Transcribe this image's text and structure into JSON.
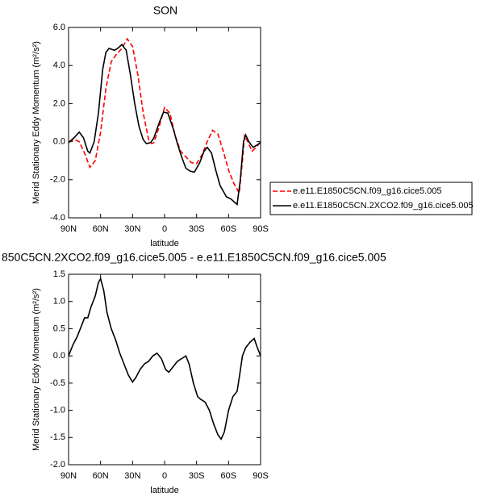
{
  "chart_data": [
    {
      "type": "line",
      "title": "SON",
      "xlabel": "latitude",
      "ylabel": "Merid Stationary Eddy Momentum (m²/s²)",
      "xlim": [
        90,
        -90
      ],
      "ylim": [
        -4.0,
        6.0
      ],
      "xticks": [
        {
          "value": 90,
          "label": "90N"
        },
        {
          "value": 60,
          "label": "60N"
        },
        {
          "value": 30,
          "label": "30N"
        },
        0,
        {
          "value": -30,
          "label": "30S"
        },
        {
          "value": -60,
          "label": "60S"
        },
        {
          "value": -90,
          "label": "90S"
        }
      ],
      "yticks": [
        {
          "value": -4,
          "label": "-4.0"
        },
        {
          "value": -2,
          "label": "-2.0"
        },
        {
          "value": 0,
          "label": "0.0"
        },
        {
          "value": 2,
          "label": "2.0"
        },
        {
          "value": 4,
          "label": "4.0"
        },
        {
          "value": 6,
          "label": "6.0"
        }
      ],
      "legend": "outside-right",
      "series": [
        {
          "name": "e.e11.E1850C5CN.f09_g16.cice5.005",
          "color": "#ff0000",
          "dash": "dashed",
          "x": [
            90,
            84,
            80,
            75,
            70,
            65,
            60,
            55,
            50,
            45,
            40,
            35,
            30,
            25,
            20,
            15,
            12,
            10,
            5,
            0,
            -5,
            -10,
            -15,
            -20,
            -25,
            -30,
            -35,
            -40,
            -45,
            -50,
            -55,
            -60,
            -65,
            -70,
            -73,
            -75,
            -78,
            -82,
            -86,
            -90
          ],
          "values": [
            0,
            0.1,
            0,
            -0.6,
            -1.35,
            -1.0,
            0.5,
            2.8,
            4.2,
            4.6,
            4.9,
            5.4,
            5.0,
            3.5,
            1.5,
            0.1,
            -0.1,
            -0.05,
            0.8,
            1.8,
            1.5,
            0.3,
            -0.5,
            -0.8,
            -1.1,
            -1.15,
            -0.7,
            0.0,
            0.6,
            0.4,
            -0.5,
            -1.5,
            -2.2,
            -2.7,
            -1.0,
            0.3,
            0.0,
            -0.5,
            -0.3,
            0.0
          ]
        },
        {
          "name": "e.e11.E1850C5CN.2XCO2.f09_g16.cice5.005",
          "color": "#000000",
          "dash": "solid",
          "x": [
            90,
            85,
            80,
            76,
            72,
            70,
            66,
            62,
            58,
            55,
            52,
            47,
            44,
            40,
            36,
            32,
            28,
            24,
            20,
            17,
            13,
            10,
            5,
            1,
            -3,
            -8,
            -12,
            -16,
            -20,
            -24,
            -28,
            -33,
            -37,
            -40,
            -44,
            -48,
            -52,
            -58,
            -62,
            -66,
            -68,
            -71,
            -74,
            -76,
            -79,
            -83,
            -86,
            -90
          ],
          "values": [
            -0.05,
            0.2,
            0.5,
            0.2,
            -0.5,
            -0.6,
            0.0,
            1.5,
            3.8,
            4.7,
            4.9,
            4.8,
            4.9,
            5.1,
            4.8,
            3.5,
            2.0,
            0.8,
            0.1,
            -0.1,
            -0.05,
            0.2,
            1.0,
            1.55,
            1.5,
            0.7,
            -0.1,
            -0.8,
            -1.4,
            -1.55,
            -1.6,
            -1.1,
            -0.5,
            -0.3,
            -0.6,
            -1.5,
            -2.3,
            -2.9,
            -3.0,
            -3.2,
            -3.3,
            -2.0,
            0.0,
            0.35,
            0.0,
            -0.3,
            -0.2,
            -0.05
          ]
        }
      ]
    },
    {
      "type": "line",
      "title": "850C5CN.2XCO2.f09_g16.cice5.005 - e.e11.E1850C5CN.f09_g16.cice5.005",
      "xlabel": "latitude",
      "ylabel": "Merid Stationary Eddy Momentum (m²/s²)",
      "xlim": [
        90,
        -90
      ],
      "ylim": [
        -2.0,
        1.5
      ],
      "xticks": [
        {
          "value": 90,
          "label": "90N"
        },
        {
          "value": 60,
          "label": "60N"
        },
        {
          "value": 30,
          "label": "30N"
        },
        0,
        {
          "value": -30,
          "label": "30S"
        },
        {
          "value": -60,
          "label": "60S"
        },
        {
          "value": -90,
          "label": "90S"
        }
      ],
      "yticks": [
        {
          "value": -2,
          "label": "-2.0"
        },
        {
          "value": -1.5,
          "label": "-1.5"
        },
        {
          "value": -1,
          "label": "-1.0"
        },
        {
          "value": -0.5,
          "label": "-0.5"
        },
        {
          "value": 0,
          "label": "0.0"
        },
        0.5,
        {
          "value": 1,
          "label": "1.0"
        },
        1.5
      ],
      "series": [
        {
          "color": "#000000",
          "dash": "solid",
          "x": [
            90,
            86,
            82,
            78,
            75,
            72,
            69,
            65,
            62,
            60,
            57,
            54,
            50,
            46,
            42,
            38,
            34,
            30,
            27,
            23,
            19,
            15,
            11,
            7,
            3,
            -1,
            -4,
            -8,
            -12,
            -16,
            -20,
            -23,
            -27,
            -31,
            -34,
            -38,
            -42,
            -46,
            -50,
            -53,
            -56,
            -60,
            -64,
            -68,
            -70,
            -73,
            -76,
            -80,
            -84,
            -87,
            -90
          ],
          "values": [
            0.0,
            0.2,
            0.35,
            0.55,
            0.7,
            0.7,
            0.9,
            1.1,
            1.35,
            1.42,
            1.2,
            0.8,
            0.5,
            0.3,
            0.05,
            -0.15,
            -0.35,
            -0.48,
            -0.4,
            -0.25,
            -0.15,
            -0.1,
            0.0,
            0.05,
            -0.05,
            -0.25,
            -0.3,
            -0.2,
            -0.1,
            -0.05,
            0.0,
            -0.15,
            -0.5,
            -0.75,
            -0.8,
            -0.85,
            -1.0,
            -1.25,
            -1.45,
            -1.53,
            -1.4,
            -1.0,
            -0.75,
            -0.65,
            -0.4,
            0.0,
            0.15,
            0.25,
            0.32,
            0.15,
            0.0
          ]
        }
      ]
    }
  ]
}
